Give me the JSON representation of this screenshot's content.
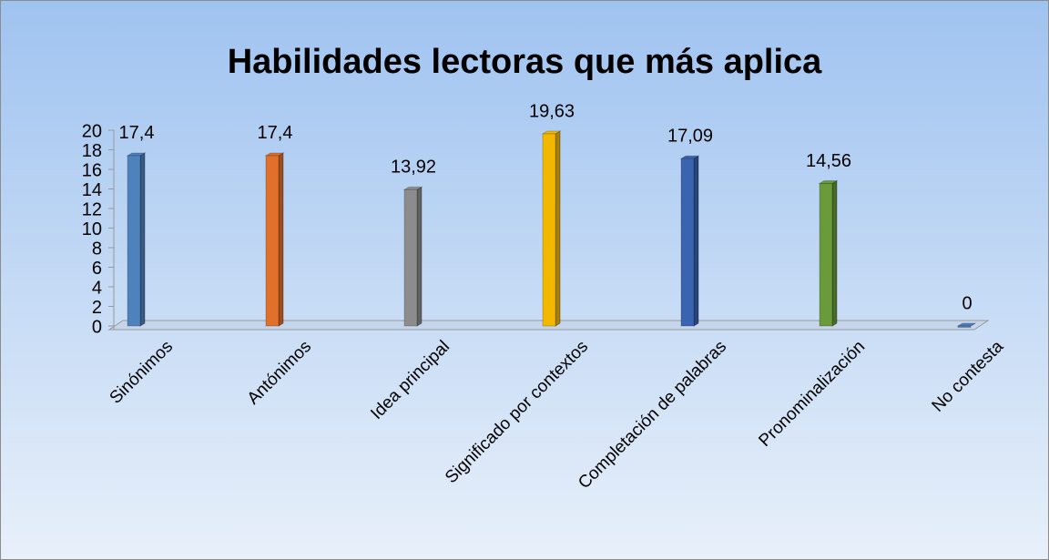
{
  "chart_data": {
    "type": "bar",
    "title": "Habilidades lectoras que más aplica",
    "categories": [
      "Sinónimos",
      "Antónimos",
      "Idea principal",
      "Significado por contextos",
      "Completación de palabras",
      "Pronominalización",
      "No contesta"
    ],
    "values": [
      17.4,
      17.4,
      13.92,
      19.63,
      17.09,
      14.56,
      0
    ],
    "value_labels": [
      "17,4",
      "17,4",
      "13,92",
      "19,63",
      "17,09",
      "14,56",
      "0"
    ],
    "colors": [
      "#4f81bd",
      "#e0702a",
      "#8c8c8c",
      "#f2b800",
      "#3a63b0",
      "#6a9a3a",
      "#4f81bd"
    ],
    "ylim": [
      0,
      20
    ],
    "yticks": [
      0,
      2,
      4,
      6,
      8,
      10,
      12,
      14,
      16,
      18,
      20
    ]
  }
}
